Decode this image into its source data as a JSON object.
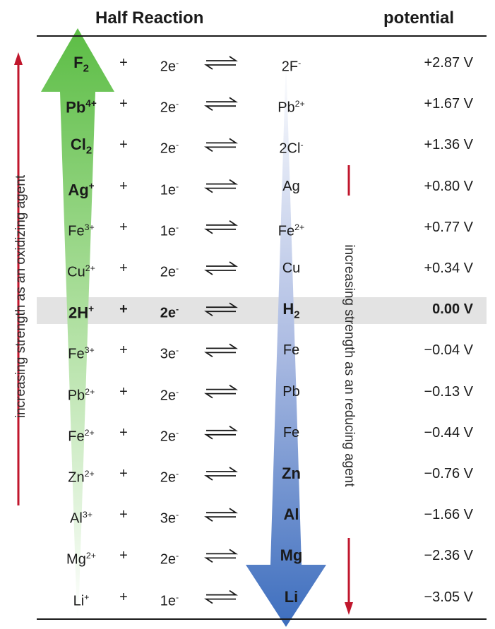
{
  "header": {
    "left_title": "Half Reaction",
    "right_title": "potential"
  },
  "side_labels": {
    "oxidizing": "increasing strength as an oxidizing agent",
    "reducing": "increasing strength as an reducing agent"
  },
  "colors": {
    "green_arrow": "#5fbf49",
    "blue_arrow": "#3f6fbf",
    "red_arrow": "#c0162c",
    "highlight": "#e3e3e3"
  },
  "rows": [
    {
      "ox": "F",
      "ox_sub": "2",
      "ox_sup": "",
      "plus": "+",
      "e_num": "2e",
      "e_sup": "-",
      "red": "2F",
      "red_sub": "",
      "red_sup": "-",
      "pot": "+2.87 V",
      "ox_strong": true,
      "red_strong": false
    },
    {
      "ox": "Pb",
      "ox_sub": "",
      "ox_sup": "4+",
      "plus": "+",
      "e_num": "2e",
      "e_sup": "-",
      "red": "Pb",
      "red_sub": "",
      "red_sup": "2+",
      "pot": "+1.67 V",
      "ox_strong": true,
      "red_strong": false
    },
    {
      "ox": "Cl",
      "ox_sub": "2",
      "ox_sup": "",
      "plus": "+",
      "e_num": "2e",
      "e_sup": "-",
      "red": "2Cl",
      "red_sub": "",
      "red_sup": "-",
      "pot": "+1.36 V",
      "ox_strong": true,
      "red_strong": false
    },
    {
      "ox": "Ag",
      "ox_sub": "",
      "ox_sup": "+",
      "plus": "+",
      "e_num": "1e",
      "e_sup": "-",
      "red": "Ag",
      "red_sub": "",
      "red_sup": "",
      "pot": "+0.80 V",
      "ox_strong": true,
      "red_strong": false
    },
    {
      "ox": "Fe",
      "ox_sub": "",
      "ox_sup": "3+",
      "plus": "+",
      "e_num": "1e",
      "e_sup": "-",
      "red": "Fe",
      "red_sub": "",
      "red_sup": "2+",
      "pot": "+0.77 V",
      "ox_strong": false,
      "red_strong": false
    },
    {
      "ox": "Cu",
      "ox_sub": "",
      "ox_sup": "2+",
      "plus": "+",
      "e_num": "2e",
      "e_sup": "-",
      "red": "Cu",
      "red_sub": "",
      "red_sup": "",
      "pot": "+0.34 V",
      "ox_strong": false,
      "red_strong": false
    },
    {
      "ox": "2H",
      "ox_sub": "",
      "ox_sup": "+",
      "plus": "+",
      "e_num": "2e",
      "e_sup": "-",
      "red": "H",
      "red_sub": "2",
      "red_sup": "",
      "pot": "0.00 V",
      "ox_strong": true,
      "red_strong": true,
      "highlight": true
    },
    {
      "ox": "Fe",
      "ox_sub": "",
      "ox_sup": "3+",
      "plus": "+",
      "e_num": "3e",
      "e_sup": "-",
      "red": "Fe",
      "red_sub": "",
      "red_sup": "",
      "pot": "−0.04 V",
      "ox_strong": false,
      "red_strong": false
    },
    {
      "ox": "Pb",
      "ox_sub": "",
      "ox_sup": "2+",
      "plus": "+",
      "e_num": "2e",
      "e_sup": "-",
      "red": "Pb",
      "red_sub": "",
      "red_sup": "",
      "pot": "−0.13 V",
      "ox_strong": false,
      "red_strong": false
    },
    {
      "ox": "Fe",
      "ox_sub": "",
      "ox_sup": "2+",
      "plus": "+",
      "e_num": "2e",
      "e_sup": "-",
      "red": "Fe",
      "red_sub": "",
      "red_sup": "",
      "pot": "−0.44 V",
      "ox_strong": false,
      "red_strong": false
    },
    {
      "ox": "Zn",
      "ox_sub": "",
      "ox_sup": "2+",
      "plus": "+",
      "e_num": "2e",
      "e_sup": "-",
      "red": "Zn",
      "red_sub": "",
      "red_sup": "",
      "pot": "−0.76 V",
      "ox_strong": false,
      "red_strong": true
    },
    {
      "ox": "Al",
      "ox_sub": "",
      "ox_sup": "3+",
      "plus": "+",
      "e_num": "3e",
      "e_sup": "-",
      "red": "Al",
      "red_sub": "",
      "red_sup": "",
      "pot": "−1.66 V",
      "ox_strong": false,
      "red_strong": true
    },
    {
      "ox": "Mg",
      "ox_sub": "",
      "ox_sup": "2+",
      "plus": "+",
      "e_num": "2e",
      "e_sup": "-",
      "red": "Mg",
      "red_sub": "",
      "red_sup": "",
      "pot": "−2.36 V",
      "ox_strong": false,
      "red_strong": true
    },
    {
      "ox": "Li",
      "ox_sub": "",
      "ox_sup": "+",
      "plus": "+",
      "e_num": "1e",
      "e_sup": "-",
      "red": "Li",
      "red_sub": "",
      "red_sup": "",
      "pot": "−3.05 V",
      "ox_strong": false,
      "red_strong": true
    }
  ]
}
